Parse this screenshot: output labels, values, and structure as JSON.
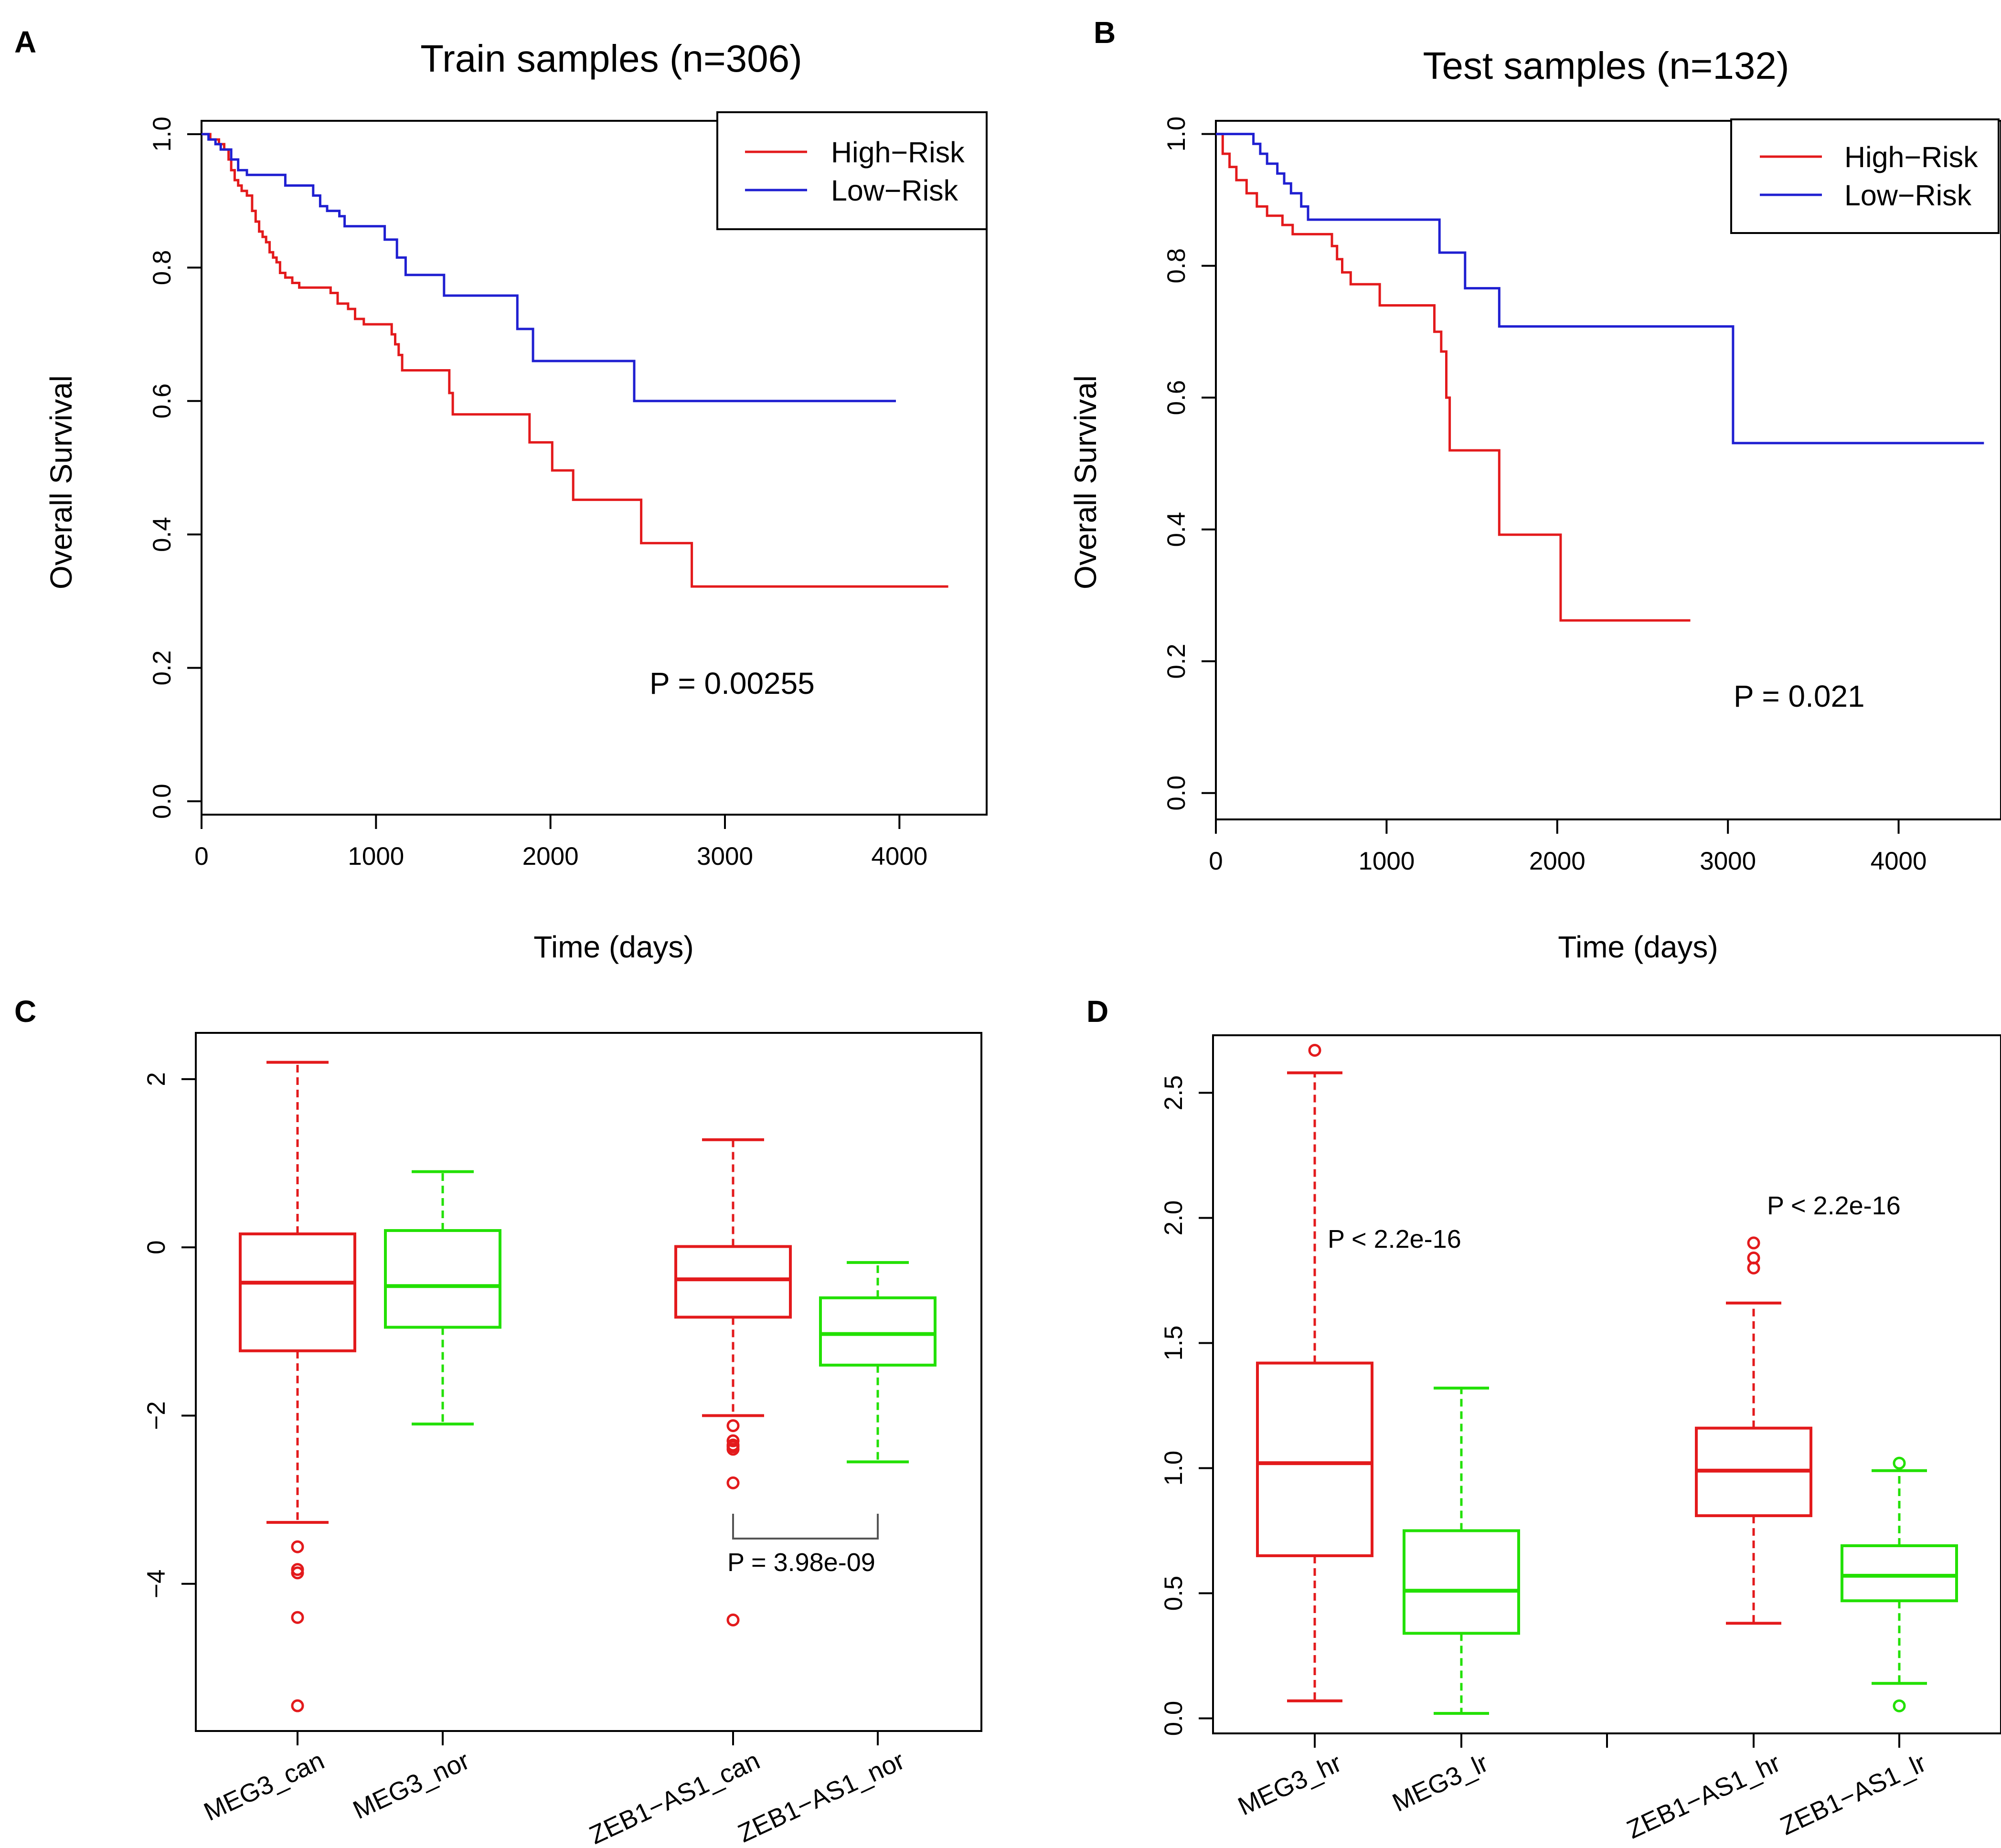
{
  "panels": {
    "A": {
      "letter": "A"
    },
    "B": {
      "letter": "B"
    },
    "C": {
      "letter": "C"
    },
    "D": {
      "letter": "D"
    }
  },
  "chart_data": [
    {
      "id": "A",
      "type": "line",
      "title": "Train samples (n=306)",
      "xlabel": "Time (days)",
      "ylabel": "Overall Survival",
      "xlim": [
        0,
        4500
      ],
      "ylim": [
        -0.02,
        1.02
      ],
      "xticks": [
        0,
        1000,
        2000,
        3000,
        4000
      ],
      "yticks": [
        0.0,
        0.2,
        0.4,
        0.6,
        0.8,
        1.0
      ],
      "xtick_labels": [
        "0",
        "1000",
        "2000",
        "3000",
        "4000"
      ],
      "ytick_labels": [
        "0.0",
        "0.2",
        "0.4",
        "0.6",
        "0.8",
        "1.0"
      ],
      "legend": {
        "position": "top-right"
      },
      "series": [
        {
          "name": "High−Risk",
          "color": "#e31a1c",
          "steps": [
            [
              0,
              1.0
            ],
            [
              50,
              0.992
            ],
            [
              100,
              0.985
            ],
            [
              130,
              0.977
            ],
            [
              155,
              0.962
            ],
            [
              170,
              0.946
            ],
            [
              190,
              0.931
            ],
            [
              210,
              0.923
            ],
            [
              230,
              0.915
            ],
            [
              260,
              0.908
            ],
            [
              290,
              0.885
            ],
            [
              310,
              0.869
            ],
            [
              330,
              0.854
            ],
            [
              350,
              0.846
            ],
            [
              370,
              0.838
            ],
            [
              390,
              0.823
            ],
            [
              410,
              0.815
            ],
            [
              430,
              0.808
            ],
            [
              450,
              0.792
            ],
            [
              480,
              0.785
            ],
            [
              520,
              0.777
            ],
            [
              560,
              0.77
            ],
            [
              740,
              0.762
            ],
            [
              780,
              0.746
            ],
            [
              840,
              0.738
            ],
            [
              880,
              0.723
            ],
            [
              930,
              0.715
            ],
            [
              1090,
              0.7
            ],
            [
              1110,
              0.685
            ],
            [
              1130,
              0.669
            ],
            [
              1150,
              0.646
            ],
            [
              1420,
              0.612
            ],
            [
              1440,
              0.58
            ],
            [
              1880,
              0.538
            ],
            [
              2010,
              0.496
            ],
            [
              2130,
              0.452
            ],
            [
              2520,
              0.387
            ],
            [
              2810,
              0.322
            ],
            [
              4280,
              0.322
            ]
          ]
        },
        {
          "name": "Low−Risk",
          "color": "#1f1fd1",
          "steps": [
            [
              0,
              1.0
            ],
            [
              40,
              0.992
            ],
            [
              80,
              0.985
            ],
            [
              110,
              0.977
            ],
            [
              170,
              0.962
            ],
            [
              210,
              0.946
            ],
            [
              260,
              0.939
            ],
            [
              480,
              0.923
            ],
            [
              640,
              0.908
            ],
            [
              680,
              0.892
            ],
            [
              720,
              0.885
            ],
            [
              790,
              0.877
            ],
            [
              820,
              0.862
            ],
            [
              1050,
              0.842
            ],
            [
              1120,
              0.815
            ],
            [
              1170,
              0.789
            ],
            [
              1390,
              0.758
            ],
            [
              1810,
              0.708
            ],
            [
              1900,
              0.66
            ],
            [
              2480,
              0.6
            ],
            [
              3980,
              0.6
            ]
          ]
        }
      ],
      "annotation": "P = 0.00255"
    },
    {
      "id": "B",
      "type": "line",
      "title": "Test samples (n=132)",
      "xlabel": "Time (days)",
      "ylabel": "Overall Survival",
      "xlim": [
        0,
        4600
      ],
      "ylim": [
        -0.04,
        1.02
      ],
      "xticks": [
        0,
        1000,
        2000,
        3000,
        4000
      ],
      "yticks": [
        0.0,
        0.2,
        0.4,
        0.6,
        0.8,
        1.0
      ],
      "xtick_labels": [
        "0",
        "1000",
        "2000",
        "3000",
        "4000"
      ],
      "ytick_labels": [
        "0.0",
        "0.2",
        "0.4",
        "0.6",
        "0.8",
        "1.0"
      ],
      "legend": {
        "position": "top-right"
      },
      "series": [
        {
          "name": "High−Risk",
          "color": "#e31a1c",
          "steps": [
            [
              0,
              1.0
            ],
            [
              40,
              0.97
            ],
            [
              80,
              0.95
            ],
            [
              120,
              0.93
            ],
            [
              180,
              0.91
            ],
            [
              240,
              0.89
            ],
            [
              300,
              0.876
            ],
            [
              390,
              0.862
            ],
            [
              450,
              0.848
            ],
            [
              680,
              0.83
            ],
            [
              710,
              0.81
            ],
            [
              740,
              0.79
            ],
            [
              790,
              0.772
            ],
            [
              960,
              0.74
            ],
            [
              1280,
              0.7
            ],
            [
              1320,
              0.67
            ],
            [
              1350,
              0.6
            ],
            [
              1370,
              0.52
            ],
            [
              1660,
              0.392
            ],
            [
              2020,
              0.262
            ],
            [
              2780,
              0.262
            ]
          ]
        },
        {
          "name": "Low−Risk",
          "color": "#1f1fd1",
          "steps": [
            [
              0,
              1.0
            ],
            [
              220,
              0.985
            ],
            [
              260,
              0.97
            ],
            [
              300,
              0.955
            ],
            [
              360,
              0.94
            ],
            [
              400,
              0.925
            ],
            [
              440,
              0.91
            ],
            [
              500,
              0.89
            ],
            [
              540,
              0.87
            ],
            [
              1310,
              0.82
            ],
            [
              1460,
              0.766
            ],
            [
              1660,
              0.708
            ],
            [
              3030,
              0.531
            ],
            [
              4500,
              0.531
            ]
          ]
        }
      ],
      "annotation": "P = 0.021"
    },
    {
      "id": "C",
      "type": "box",
      "ylim": [
        -5.75,
        2.55
      ],
      "yticks": [
        -4,
        -2,
        0,
        2
      ],
      "ytick_labels": [
        "−4",
        "−2",
        "0",
        "2"
      ],
      "boxes": [
        {
          "label": "MEG3_can",
          "pos": 1,
          "color": "#e31a1c",
          "q1": -1.23,
          "median": -0.42,
          "q3": 0.16,
          "whisker_low": -3.27,
          "whisker_high": 2.2,
          "outliers": [
            -3.56,
            -3.83,
            -3.87,
            -4.4,
            -5.45
          ]
        },
        {
          "label": "MEG3_nor",
          "pos": 2,
          "color": "#22e000",
          "q1": -0.95,
          "median": -0.46,
          "q3": 0.2,
          "whisker_low": -2.1,
          "whisker_high": 0.9,
          "outliers": []
        },
        {
          "label": "ZEB1−AS1_can",
          "pos": 4,
          "color": "#e31a1c",
          "q1": -0.83,
          "median": -0.38,
          "q3": 0.01,
          "whisker_low": -2.0,
          "whisker_high": 1.28,
          "outliers": [
            -2.12,
            -2.3,
            -2.35,
            -2.37,
            -2.4,
            -2.8,
            -4.43
          ]
        },
        {
          "label": "ZEB1−AS1_nor",
          "pos": 5,
          "color": "#22e000",
          "q1": -1.4,
          "median": -1.03,
          "q3": -0.6,
          "whisker_low": -2.55,
          "whisker_high": -0.18,
          "outliers": []
        }
      ],
      "bracket": {
        "from": 4,
        "to": 5,
        "text": "P = 3.98e-09"
      }
    },
    {
      "id": "D",
      "type": "box",
      "ylim": [
        -0.06,
        2.73
      ],
      "yticks": [
        0.0,
        0.5,
        1.0,
        1.5,
        2.0,
        2.5
      ],
      "ytick_labels": [
        "0.0",
        "0.5",
        "1.0",
        "1.5",
        "2.0",
        "2.5"
      ],
      "boxes": [
        {
          "label": "MEG3_hr",
          "pos": 1,
          "color": "#e31a1c",
          "q1": 0.65,
          "median": 1.02,
          "q3": 1.42,
          "whisker_low": 0.07,
          "whisker_high": 2.58,
          "outliers": [
            2.67
          ]
        },
        {
          "label": "MEG3_lr",
          "pos": 2,
          "color": "#22e000",
          "q1": 0.34,
          "median": 0.51,
          "q3": 0.75,
          "whisker_low": 0.02,
          "whisker_high": 1.32,
          "outliers": []
        },
        {
          "label": "ZEB1−AS1_hr",
          "pos": 4,
          "color": "#e31a1c",
          "q1": 0.81,
          "median": 0.99,
          "q3": 1.16,
          "whisker_low": 0.38,
          "whisker_high": 1.66,
          "outliers": [
            1.8,
            1.84,
            1.9
          ]
        },
        {
          "label": "ZEB1−AS1_lr",
          "pos": 5,
          "color": "#22e000",
          "q1": 0.47,
          "median": 0.57,
          "q3": 0.69,
          "whisker_low": 0.14,
          "whisker_high": 0.99,
          "outliers": [
            1.02,
            0.05
          ]
        }
      ],
      "annotations": [
        {
          "text": "P < 2.2e-16",
          "pos": 1,
          "y": 1.93
        },
        {
          "text": "P < 2.2e-16",
          "pos": 4,
          "y": 2.07
        }
      ]
    }
  ]
}
